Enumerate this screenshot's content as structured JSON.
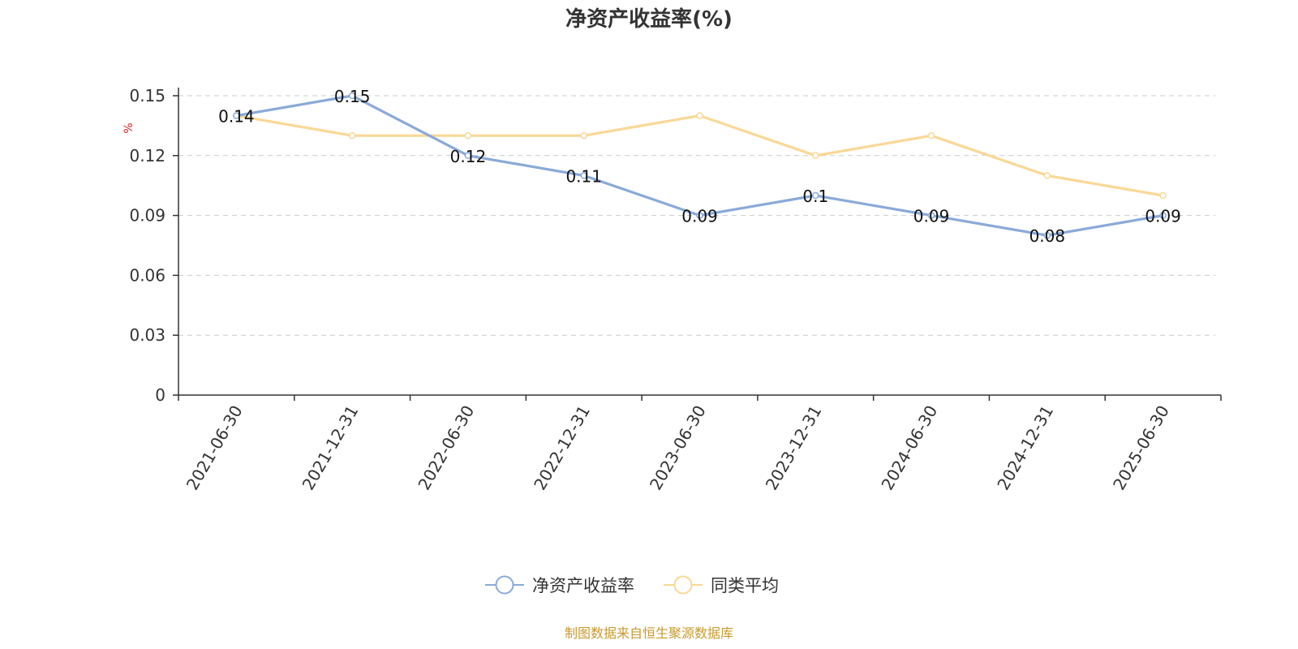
{
  "chart_data": {
    "type": "line",
    "title": "净资产收益率(%)",
    "ylabel": "%",
    "ylim": [
      0,
      0.15
    ],
    "yticks": [
      "0",
      "0.03",
      "0.06",
      "0.09",
      "0.12",
      "0.15"
    ],
    "categories": [
      "2021-06-30",
      "2021-12-31",
      "2022-06-30",
      "2022-12-31",
      "2023-06-30",
      "2023-12-31",
      "2024-06-30",
      "2024-12-31",
      "2025-06-30"
    ],
    "series": [
      {
        "name": "净资产收益率",
        "color": "#8aaad8",
        "values": [
          0.14,
          0.15,
          0.12,
          0.11,
          0.09,
          0.1,
          0.09,
          0.08,
          0.09
        ],
        "labels": [
          "0.14",
          "0.15",
          "0.12",
          "0.11",
          "0.09",
          "0.1",
          "0.09",
          "0.08",
          "0.09"
        ]
      },
      {
        "name": "同类平均",
        "color": "#fad896",
        "values": [
          0.14,
          0.13,
          0.13,
          0.13,
          0.14,
          0.12,
          0.13,
          0.11,
          0.1
        ]
      }
    ],
    "grid": true,
    "legend_position": "bottom-center"
  },
  "source": {
    "text": "制图数据来自恒生聚源数据库",
    "color": "#c89a2e"
  }
}
